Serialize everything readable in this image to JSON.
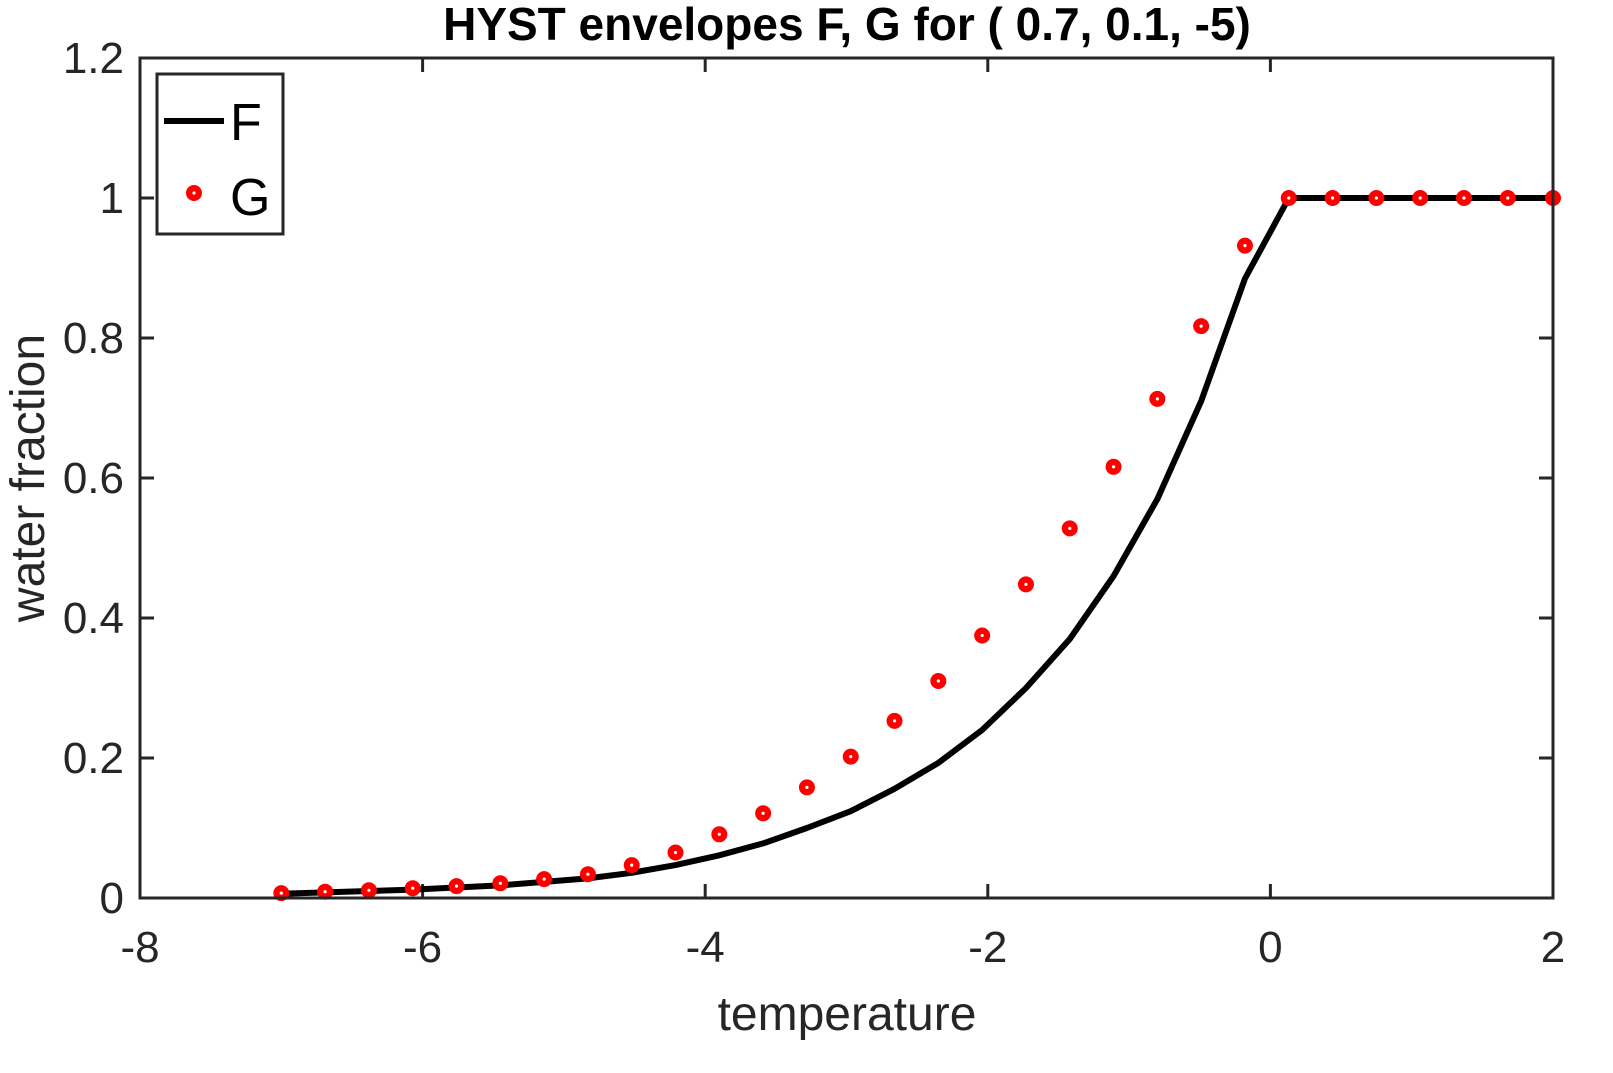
{
  "chart_data": {
    "type": "line",
    "title": "HYST envelopes F, G for ( 0.7,  0.1,  -5)",
    "xlabel": "temperature",
    "ylabel": "water fraction",
    "xlim": [
      -8,
      2
    ],
    "ylim": [
      0,
      1.2
    ],
    "xticks": [
      -8,
      -6,
      -4,
      -2,
      0,
      2
    ],
    "yticks": [
      0,
      0.2,
      0.4,
      0.6,
      0.8,
      1,
      1.2
    ],
    "xtick_labels": [
      "-8",
      "-6",
      "-4",
      "-2",
      "0",
      "2"
    ],
    "ytick_labels": [
      "0",
      "0.2",
      "0.4",
      "0.6",
      "0.8",
      "1",
      "1.2"
    ],
    "legend": {
      "position": "top-left",
      "entries": [
        "F",
        "G"
      ]
    },
    "series": [
      {
        "name": "F",
        "style": "line",
        "color": "#000000",
        "x": [
          -7.0,
          -6.69,
          -6.38,
          -6.07,
          -5.76,
          -5.45,
          -5.14,
          -4.83,
          -4.52,
          -4.21,
          -3.9,
          -3.59,
          -3.28,
          -2.97,
          -2.66,
          -2.35,
          -2.04,
          -1.73,
          -1.42,
          -1.11,
          -0.8,
          -0.49,
          -0.18,
          0.13,
          0.44,
          0.75,
          1.06,
          1.37,
          1.68,
          2.0
        ],
        "y": [
          0.006,
          0.008,
          0.01,
          0.012,
          0.015,
          0.018,
          0.023,
          0.028,
          0.036,
          0.047,
          0.061,
          0.078,
          0.1,
          0.124,
          0.156,
          0.193,
          0.24,
          0.3,
          0.37,
          0.46,
          0.57,
          0.71,
          0.885,
          1.0,
          1.0,
          1.0,
          1.0,
          1.0,
          1.0,
          1.0
        ]
      },
      {
        "name": "G",
        "style": "markers",
        "color": "#ff0000",
        "x": [
          -7.0,
          -6.69,
          -6.38,
          -6.07,
          -5.76,
          -5.45,
          -5.14,
          -4.83,
          -4.52,
          -4.21,
          -3.9,
          -3.59,
          -3.28,
          -2.97,
          -2.66,
          -2.35,
          -2.04,
          -1.73,
          -1.42,
          -1.11,
          -0.8,
          -0.49,
          -0.18,
          0.13,
          0.44,
          0.75,
          1.06,
          1.37,
          1.68,
          2.0
        ],
        "y": [
          0.007,
          0.009,
          0.011,
          0.014,
          0.017,
          0.021,
          0.027,
          0.034,
          0.047,
          0.065,
          0.091,
          0.121,
          0.158,
          0.202,
          0.253,
          0.31,
          0.375,
          0.448,
          0.528,
          0.616,
          0.713,
          0.817,
          0.932,
          1.0,
          1.0,
          1.0,
          1.0,
          1.0,
          1.0,
          1.0
        ]
      }
    ]
  }
}
